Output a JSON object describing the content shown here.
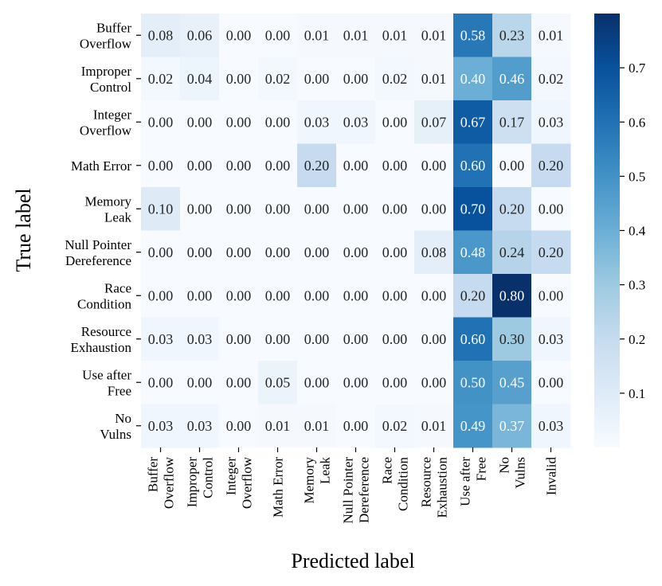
{
  "chart_data": {
    "type": "heatmap",
    "title": "",
    "xlabel": "Predicted label",
    "ylabel": "True label",
    "row_labels": [
      [
        "Buffer",
        "Overflow"
      ],
      [
        "Improper",
        "Control"
      ],
      [
        "Integer",
        "Overflow"
      ],
      [
        "Math Error"
      ],
      [
        "Memory",
        "Leak"
      ],
      [
        "Null Pointer",
        "Dereference"
      ],
      [
        "Race",
        "Condition"
      ],
      [
        "Resource",
        "Exhaustion"
      ],
      [
        "Use after",
        "Free"
      ],
      [
        "No",
        "Vulns"
      ]
    ],
    "col_labels": [
      [
        "Buffer",
        "Overflow"
      ],
      [
        "Improper",
        "Control"
      ],
      [
        "Integer",
        "Overflow"
      ],
      [
        "Math Error"
      ],
      [
        "Memory",
        "Leak"
      ],
      [
        "Null Pointer",
        "Dereference"
      ],
      [
        "Race",
        "Condition"
      ],
      [
        "Resource",
        "Exhaustion"
      ],
      [
        "Use after",
        "Free"
      ],
      [
        "No",
        "Vulns"
      ],
      [
        "Invalid"
      ]
    ],
    "values": [
      [
        0.08,
        0.06,
        0.0,
        0.0,
        0.01,
        0.01,
        0.01,
        0.01,
        0.58,
        0.23,
        0.01
      ],
      [
        0.02,
        0.04,
        0.0,
        0.02,
        0.0,
        0.0,
        0.02,
        0.01,
        0.4,
        0.46,
        0.02
      ],
      [
        0.0,
        0.0,
        0.0,
        0.0,
        0.03,
        0.03,
        0.0,
        0.07,
        0.67,
        0.17,
        0.03
      ],
      [
        0.0,
        0.0,
        0.0,
        0.0,
        0.2,
        0.0,
        0.0,
        0.0,
        0.6,
        0.0,
        0.2
      ],
      [
        0.1,
        0.0,
        0.0,
        0.0,
        0.0,
        0.0,
        0.0,
        0.0,
        0.7,
        0.2,
        0.0
      ],
      [
        0.0,
        0.0,
        0.0,
        0.0,
        0.0,
        0.0,
        0.0,
        0.08,
        0.48,
        0.24,
        0.2
      ],
      [
        0.0,
        0.0,
        0.0,
        0.0,
        0.0,
        0.0,
        0.0,
        0.0,
        0.2,
        0.8,
        0.0
      ],
      [
        0.03,
        0.03,
        0.0,
        0.0,
        0.0,
        0.0,
        0.0,
        0.0,
        0.6,
        0.3,
        0.03
      ],
      [
        0.0,
        0.0,
        0.0,
        0.05,
        0.0,
        0.0,
        0.0,
        0.0,
        0.5,
        0.45,
        0.0
      ],
      [
        0.03,
        0.03,
        0.0,
        0.01,
        0.01,
        0.0,
        0.02,
        0.01,
        0.49,
        0.37,
        0.03
      ]
    ],
    "colormap": "Blues",
    "color_range": [
      0.0,
      0.8
    ],
    "colorbar_ticks": [
      0.1,
      0.2,
      0.3,
      0.4,
      0.5,
      0.6,
      0.7
    ],
    "colorbar_tick_labels": [
      "0.1",
      "0.2",
      "0.3",
      "0.4",
      "0.5",
      "0.6",
      "0.7"
    ],
    "cell_text_format": "2 decimals"
  }
}
